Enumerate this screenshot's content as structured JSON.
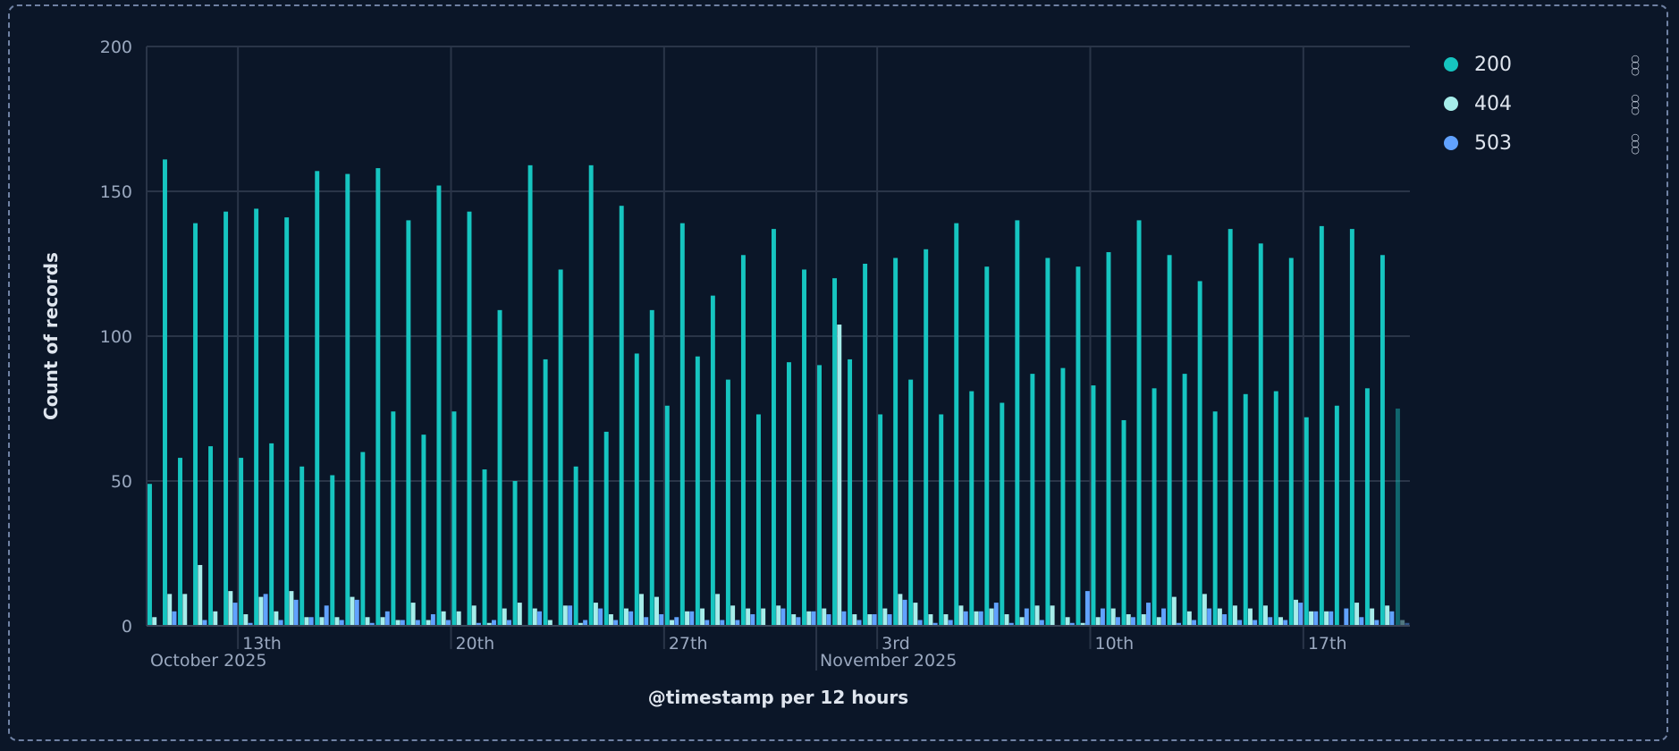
{
  "chart_data": {
    "type": "bar",
    "title": "",
    "xlabel": "@timestamp per 12 hours",
    "ylabel": "Count of records",
    "ylim": [
      0,
      200
    ],
    "yticks": [
      0,
      50,
      100,
      150,
      200
    ],
    "grid": true,
    "legend_placement": "right",
    "interval": "12 hours",
    "x_start": "2025-10-10T00:00",
    "x_ticks": [
      {
        "label": "13th",
        "date": "2025-10-13",
        "sublabel": "October 2025"
      },
      {
        "label": "20th",
        "date": "2025-10-20"
      },
      {
        "label": "27th",
        "date": "2025-10-27"
      },
      {
        "label": "3rd",
        "date": "2025-11-03",
        "sublabel": "November 2025"
      },
      {
        "label": "10th",
        "date": "2025-11-10"
      },
      {
        "label": "17th",
        "date": "2025-11-17"
      }
    ],
    "month_boundary": "2025-11-01",
    "partial_bucket_shaded": "2025-11-20T12:00",
    "series": [
      {
        "name": "200",
        "color": "#16c5c0",
        "values": [
          49,
          161,
          58,
          139,
          62,
          143,
          58,
          144,
          63,
          141,
          55,
          157,
          52,
          156,
          60,
          158,
          74,
          140,
          66,
          152,
          74,
          143,
          54,
          109,
          50,
          159,
          92,
          123,
          55,
          159,
          67,
          145,
          94,
          109,
          76,
          139,
          93,
          114,
          85,
          128,
          73,
          137,
          91,
          123,
          90,
          120,
          92,
          125,
          73,
          127,
          85,
          130,
          73,
          139,
          81,
          124,
          77,
          140,
          87,
          127,
          89,
          124,
          83,
          129,
          71,
          140,
          82,
          128,
          87,
          119,
          74,
          137,
          80,
          132,
          81,
          127,
          72,
          138,
          76,
          137,
          82,
          128,
          75
        ]
      },
      {
        "name": "404",
        "color": "#a6edea",
        "values": [
          3,
          11,
          11,
          21,
          5,
          12,
          4,
          10,
          5,
          12,
          3,
          3,
          3,
          10,
          3,
          3,
          2,
          8,
          2,
          5,
          5,
          7,
          1,
          6,
          8,
          6,
          2,
          7,
          1,
          8,
          4,
          6,
          11,
          10,
          2,
          5,
          6,
          11,
          7,
          6,
          6,
          7,
          4,
          5,
          6,
          104,
          4,
          4,
          6,
          11,
          8,
          4,
          4,
          7,
          5,
          6,
          4,
          3,
          7,
          7,
          3,
          1,
          3,
          6,
          4,
          4,
          3,
          10,
          5,
          11,
          6,
          7,
          6,
          7,
          3,
          9,
          5,
          5,
          0,
          8,
          6,
          7,
          2
        ]
      },
      {
        "name": "503",
        "color": "#61a2ff",
        "values": [
          0,
          5,
          0,
          2,
          0,
          8,
          1,
          11,
          2,
          9,
          3,
          7,
          2,
          9,
          1,
          5,
          2,
          2,
          4,
          2,
          0,
          1,
          2,
          2,
          0,
          5,
          0,
          7,
          2,
          6,
          2,
          5,
          3,
          4,
          3,
          5,
          2,
          2,
          2,
          4,
          0,
          6,
          3,
          5,
          4,
          5,
          2,
          4,
          4,
          9,
          2,
          1,
          2,
          5,
          5,
          8,
          1,
          6,
          2,
          0,
          1,
          12,
          6,
          3,
          3,
          8,
          6,
          1,
          2,
          6,
          4,
          2,
          2,
          3,
          2,
          8,
          5,
          5,
          6,
          3,
          2,
          5,
          1
        ]
      }
    ]
  }
}
